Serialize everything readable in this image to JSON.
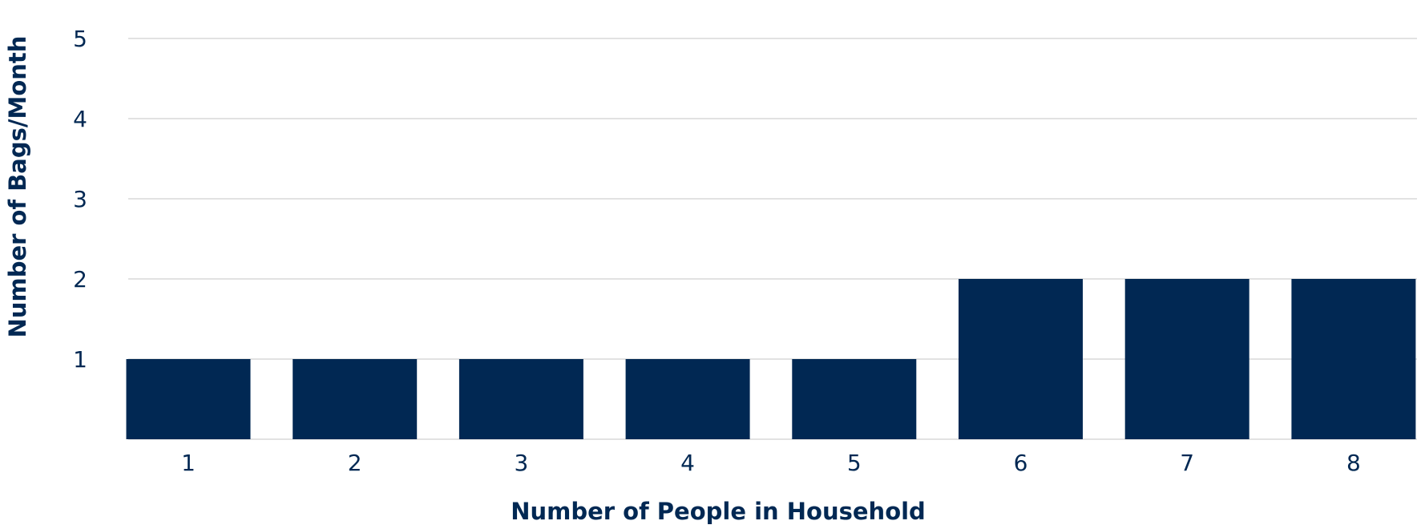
{
  "colors": {
    "bar": "#012853",
    "text": "#012853",
    "grid": "#d9d9d9",
    "background": "#ffffff"
  },
  "chart_data": {
    "type": "bar",
    "title": "",
    "xlabel": "Number of People in Household",
    "ylabel": "Number of Bags/Month",
    "categories": [
      "1",
      "2",
      "3",
      "4",
      "5",
      "6",
      "7",
      "8"
    ],
    "values": [
      1,
      1,
      1,
      1,
      1,
      2,
      2,
      2
    ],
    "ylim": [
      0,
      5
    ],
    "yticks": [
      "1",
      "2",
      "3",
      "4",
      "5"
    ],
    "grid": true,
    "legend": "none"
  }
}
